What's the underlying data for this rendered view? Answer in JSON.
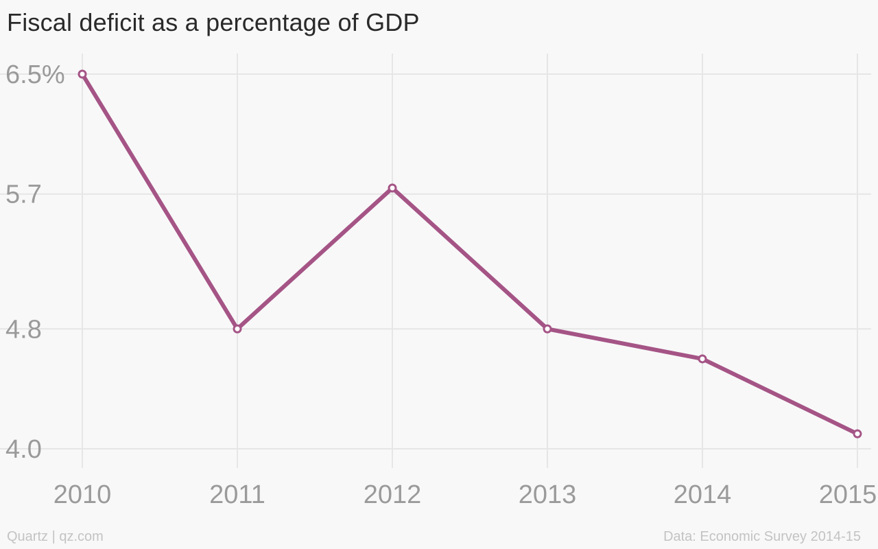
{
  "title": "Fiscal deficit as a percentage of GDP",
  "footer": {
    "credit": "Quartz | qz.com",
    "source": "Data: Economic Survey 2014-15"
  },
  "colors": {
    "line": "#a55486",
    "grid": "#e6e6e6",
    "tick_text": "#9a9a9a",
    "background": "#f8f8f8"
  },
  "chart_data": {
    "type": "line",
    "title": "Fiscal deficit as a percentage of GDP",
    "xlabel": "",
    "ylabel": "",
    "x": [
      "2010",
      "2011",
      "2012",
      "2013",
      "2014",
      "2015"
    ],
    "series": [
      {
        "values": [
          6.5,
          4.8,
          5.74,
          4.8,
          4.6,
          4.1
        ]
      }
    ],
    "ylim": [
      4.0,
      6.5
    ],
    "y_ticks": [
      4.0,
      4.8,
      5.7,
      6.5
    ],
    "y_tick_labels": [
      "4.0",
      "4.8",
      "5.7",
      "6.5%"
    ],
    "x_tick_labels": [
      "2010",
      "2011",
      "2012",
      "2013",
      "2014",
      "2015"
    ],
    "grid": true,
    "legend": "none",
    "markers": "hollow-circle"
  }
}
